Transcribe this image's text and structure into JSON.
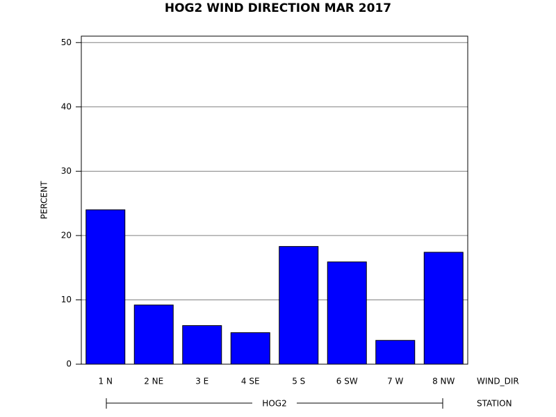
{
  "chart_data": {
    "type": "bar",
    "title": "HOG2 WIND DIRECTION MAR 2017",
    "y_label": "PERCENT",
    "x_label": "WIND_DIR",
    "group_axis_label": "STATION",
    "group": "HOG2",
    "categories": [
      "1 N",
      "2 NE",
      "3 E",
      "4 SE",
      "5 S",
      "6 SW",
      "7 W",
      "8 NW"
    ],
    "values": [
      24.0,
      9.2,
      6.0,
      4.9,
      18.3,
      15.9,
      3.7,
      17.4
    ],
    "color": "#0000ff",
    "ylim": [
      0,
      51
    ],
    "yticks": [
      0,
      10,
      20,
      30,
      40,
      50
    ],
    "grid": true
  }
}
